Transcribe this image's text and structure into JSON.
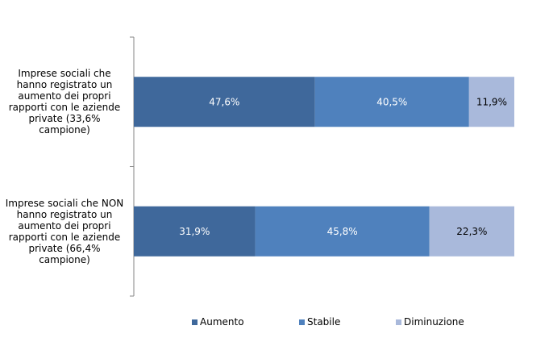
{
  "chart_data": {
    "type": "bar",
    "orientation": "horizontal",
    "stacked": "percent",
    "categories": [
      "Imprese sociali che hanno registrato un aumento dei propri rapporti con le aziende private (33,6% campione)",
      "Imprese sociali che NON hanno registrato un aumento dei propri rapporti con le aziende private (66,4% campione)"
    ],
    "category_lines": [
      [
        "Imprese sociali che",
        "hanno registrato un",
        "aumento dei propri",
        "rapporti con le aziende",
        "private (33,6%",
        "campione)"
      ],
      [
        "Imprese sociali che NON",
        "hanno registrato un",
        "aumento dei propri",
        "rapporti con le aziende",
        "private (66,4%",
        "campione)"
      ]
    ],
    "series": [
      {
        "name": "Aumento",
        "values": [
          47.6,
          31.9
        ],
        "labels": [
          "47,6%",
          "31,9%"
        ],
        "color": "#3f689b"
      },
      {
        "name": "Stabile",
        "values": [
          40.5,
          45.8
        ],
        "labels": [
          "40,5%",
          "45,8%"
        ],
        "color": "#4f81bd"
      },
      {
        "name": "Diminuzione",
        "values": [
          11.9,
          22.3
        ],
        "labels": [
          "11,9%",
          "22,3%"
        ],
        "color": "#a9b9db"
      }
    ],
    "xlim": [
      0,
      100
    ],
    "grid": false,
    "legend_position": "bottom"
  }
}
